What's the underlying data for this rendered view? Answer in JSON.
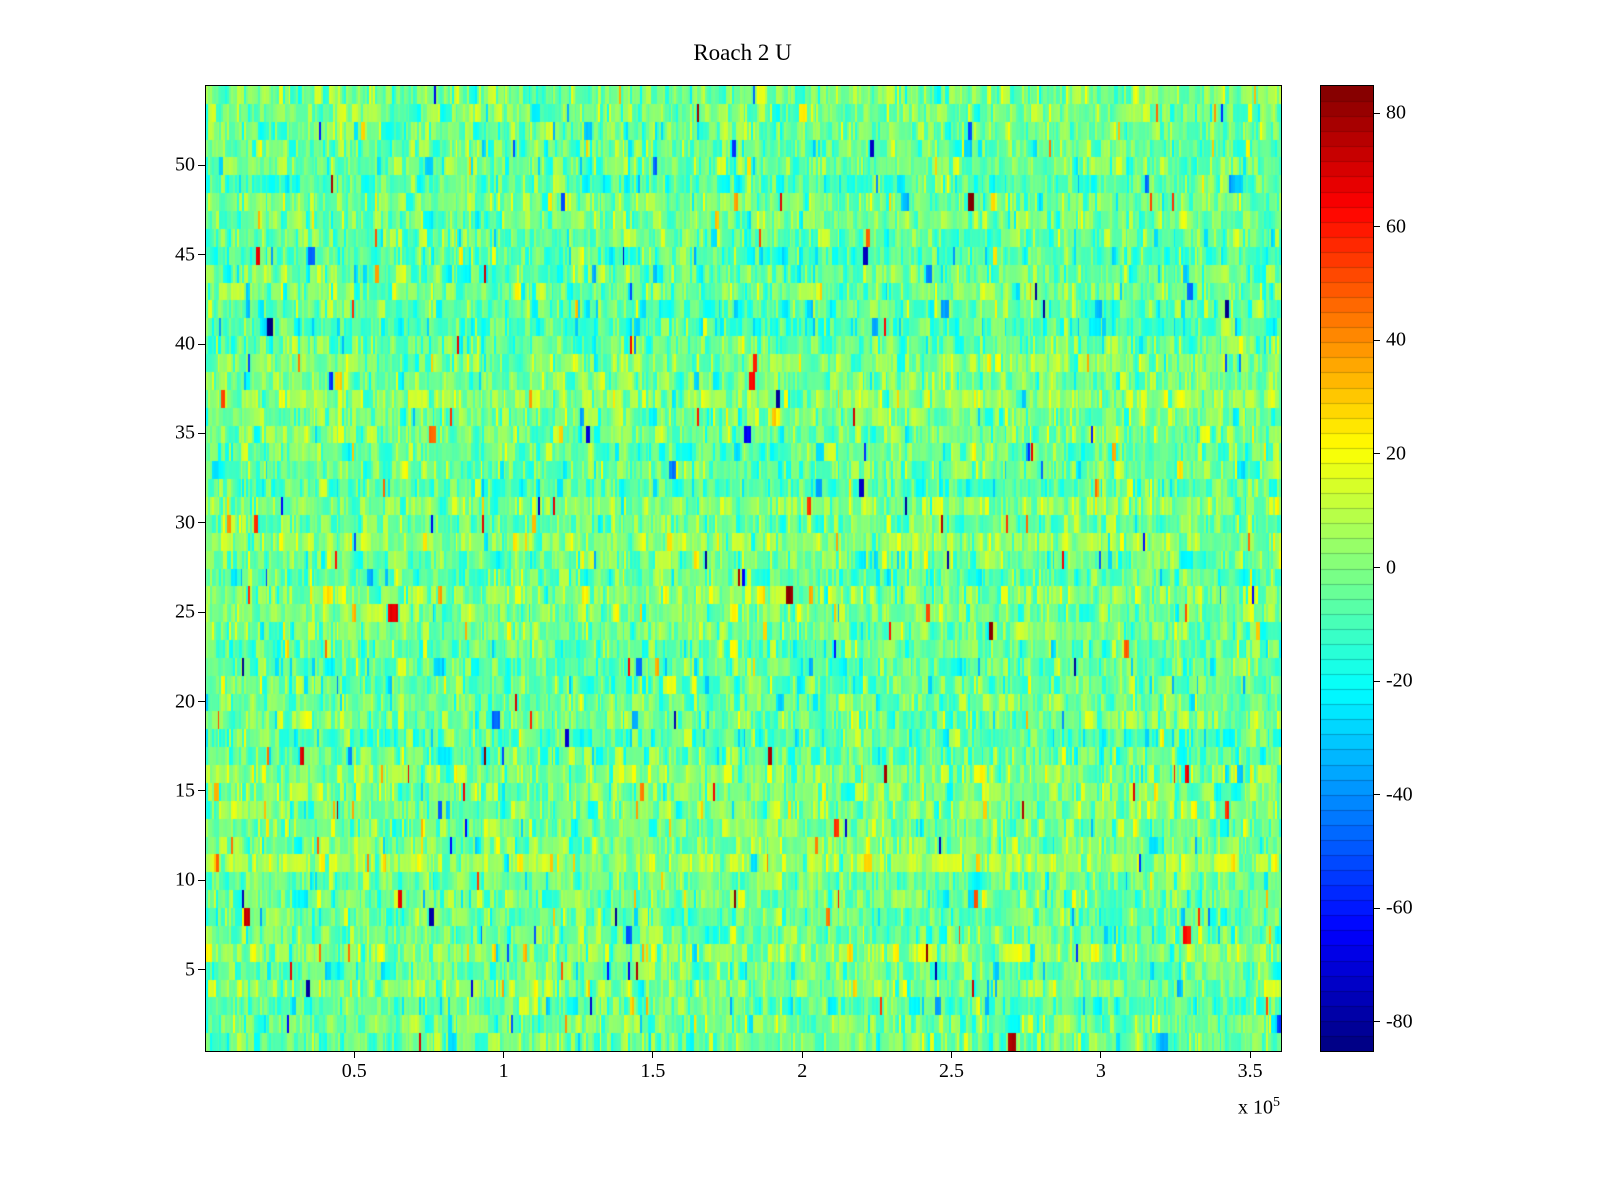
{
  "chart_data": {
    "type": "heatmap",
    "title": "Roach 2 U",
    "xlabel": "",
    "ylabel": "",
    "x_range": [
      0,
      360000
    ],
    "x_tick_values": [
      50000,
      100000,
      150000,
      200000,
      250000,
      300000,
      350000
    ],
    "x_tick_labels": [
      "0.5",
      "1",
      "1.5",
      "2",
      "2.5",
      "3",
      "3.5"
    ],
    "x_multiplier_base": "x 10",
    "x_multiplier_exponent": "5",
    "y_range": [
      0.5,
      54.5
    ],
    "y_tick_values": [
      5,
      10,
      15,
      20,
      25,
      30,
      35,
      40,
      45,
      50
    ],
    "y_tick_labels": [
      "5",
      "10",
      "15",
      "20",
      "25",
      "30",
      "35",
      "40",
      "45",
      "50"
    ],
    "rows": 54,
    "cols": 560,
    "clim": [
      -85,
      85
    ],
    "colormap": "jet",
    "colorbar_bands": 64,
    "colorbar_tick_values": [
      80,
      60,
      40,
      20,
      0,
      -20,
      -40,
      -60,
      -80
    ],
    "colorbar_tick_labels": [
      "80",
      "60",
      "40",
      "20",
      "0",
      "-20",
      "-40",
      "-60",
      "-80"
    ],
    "grid": false,
    "legend": "none",
    "noise": {
      "seed": 20240217,
      "mean": -3,
      "base_std": 9,
      "row_offset_std": 2.5,
      "mid_outlier_prob": 0.045,
      "mid_outlier_std": 22,
      "extreme_outlier_prob": 0.006,
      "extreme_min": 45,
      "extreme_span": 40,
      "run_prob": 0.35
    }
  }
}
